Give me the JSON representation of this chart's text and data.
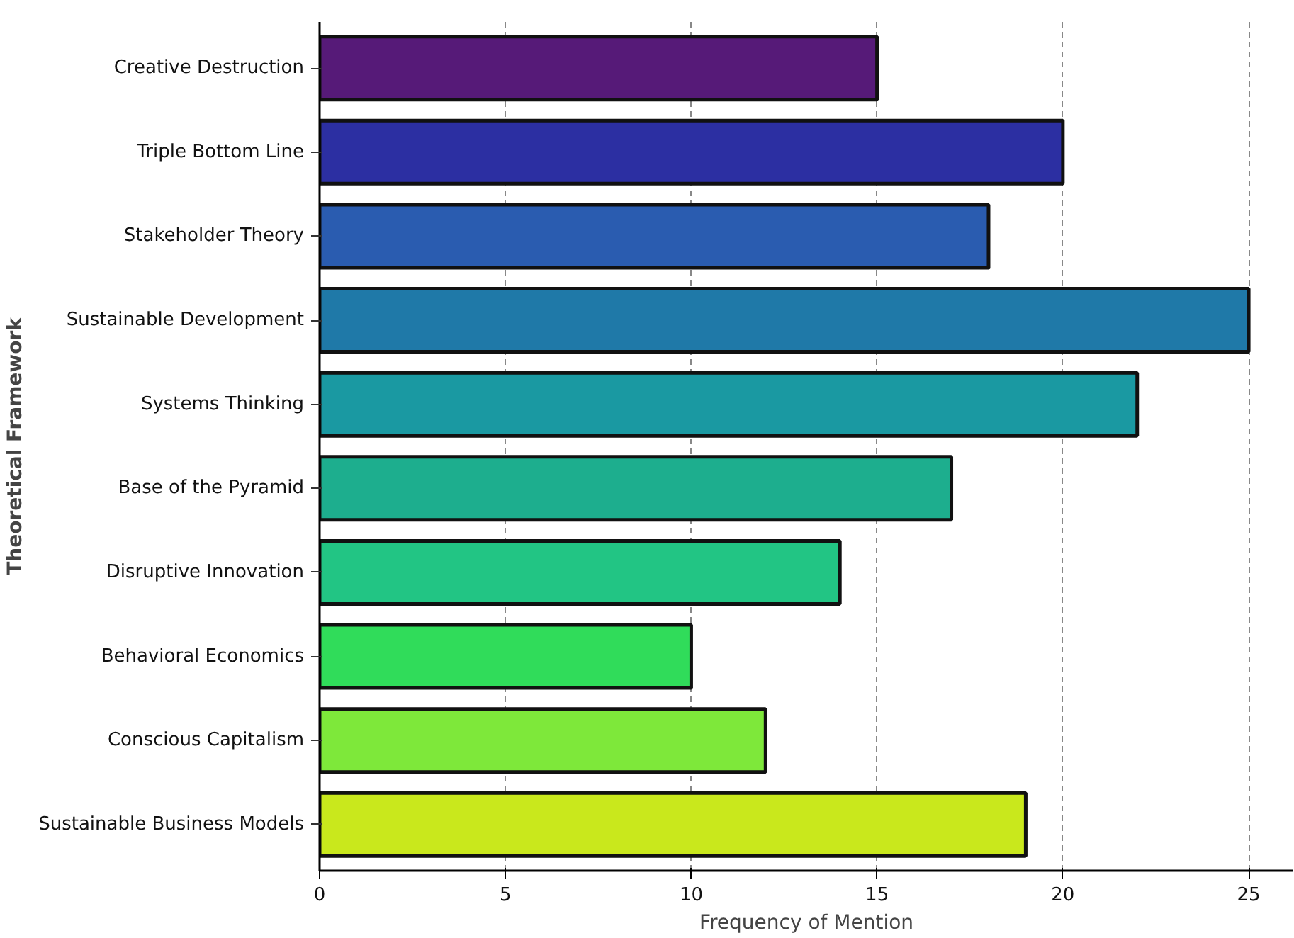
{
  "chart_data": {
    "type": "bar",
    "orientation": "horizontal",
    "xlabel": "Frequency of Mention",
    "ylabel": "Theoretical Framework",
    "categories": [
      "Creative Destruction",
      "Triple Bottom Line",
      "Stakeholder Theory",
      "Sustainable Development",
      "Systems Thinking",
      "Base of the Pyramid",
      "Disruptive Innovation",
      "Behavioral Economics",
      "Conscious Capitalism",
      "Sustainable Business Models"
    ],
    "values": [
      15,
      20,
      18,
      25,
      22,
      17,
      14,
      10,
      12,
      19
    ],
    "colors": [
      "#561a78",
      "#2c2fa2",
      "#2a5cb0",
      "#1f79a8",
      "#1a99a2",
      "#1dae8e",
      "#22c584",
      "#30dc5a",
      "#7ee83a",
      "#c9e81c"
    ],
    "xlim": [
      0,
      26.2
    ],
    "xticks": [
      0,
      5,
      10,
      15,
      20,
      25
    ],
    "grid": "x"
  }
}
